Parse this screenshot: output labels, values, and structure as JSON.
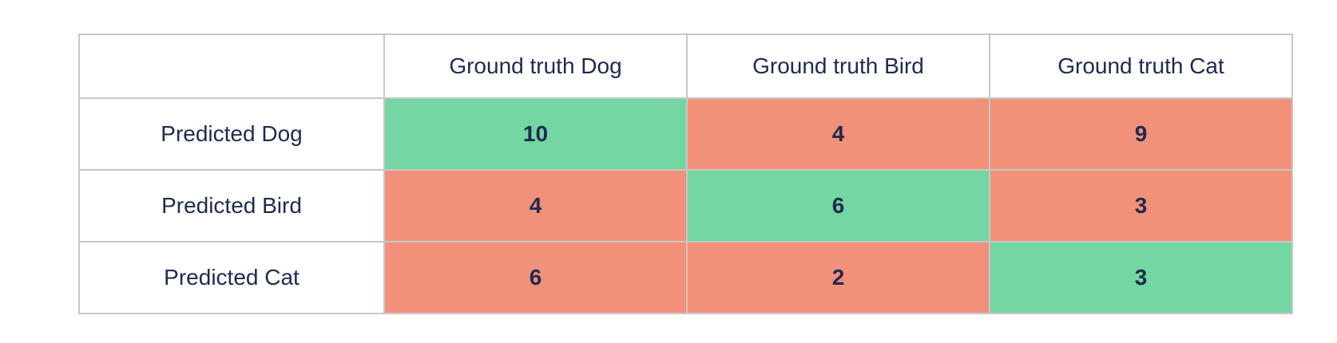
{
  "colors": {
    "correct": "#74d6a2",
    "incorrect": "#f2917a",
    "text": "#1f2b4e",
    "border": "#c8c8c8",
    "background": "#ffffff"
  },
  "table": {
    "corner_label": "",
    "column_headers": [
      "Ground truth Dog",
      "Ground truth Bird",
      "Ground truth Cat"
    ],
    "rows": [
      {
        "label": "Predicted Dog",
        "values": [
          "10",
          "4",
          "9"
        ],
        "states": [
          "correct",
          "incorrect",
          "incorrect"
        ]
      },
      {
        "label": "Predicted Bird",
        "values": [
          "4",
          "6",
          "3"
        ],
        "states": [
          "incorrect",
          "correct",
          "incorrect"
        ]
      },
      {
        "label": "Predicted Cat",
        "values": [
          "6",
          "2",
          "3"
        ],
        "states": [
          "incorrect",
          "incorrect",
          "correct"
        ]
      }
    ]
  },
  "chart_data": {
    "type": "table",
    "subtype": "confusion-matrix",
    "title": "",
    "column_headers": [
      "Ground truth Dog",
      "Ground truth Bird",
      "Ground truth Cat"
    ],
    "row_headers": [
      "Predicted Dog",
      "Predicted Bird",
      "Predicted Cat"
    ],
    "values": [
      [
        10,
        4,
        9
      ],
      [
        4,
        6,
        3
      ],
      [
        6,
        2,
        3
      ]
    ],
    "diagonal_color": "#74d6a2",
    "off_diagonal_color": "#f2917a",
    "legend_position": "none",
    "grid": true
  }
}
